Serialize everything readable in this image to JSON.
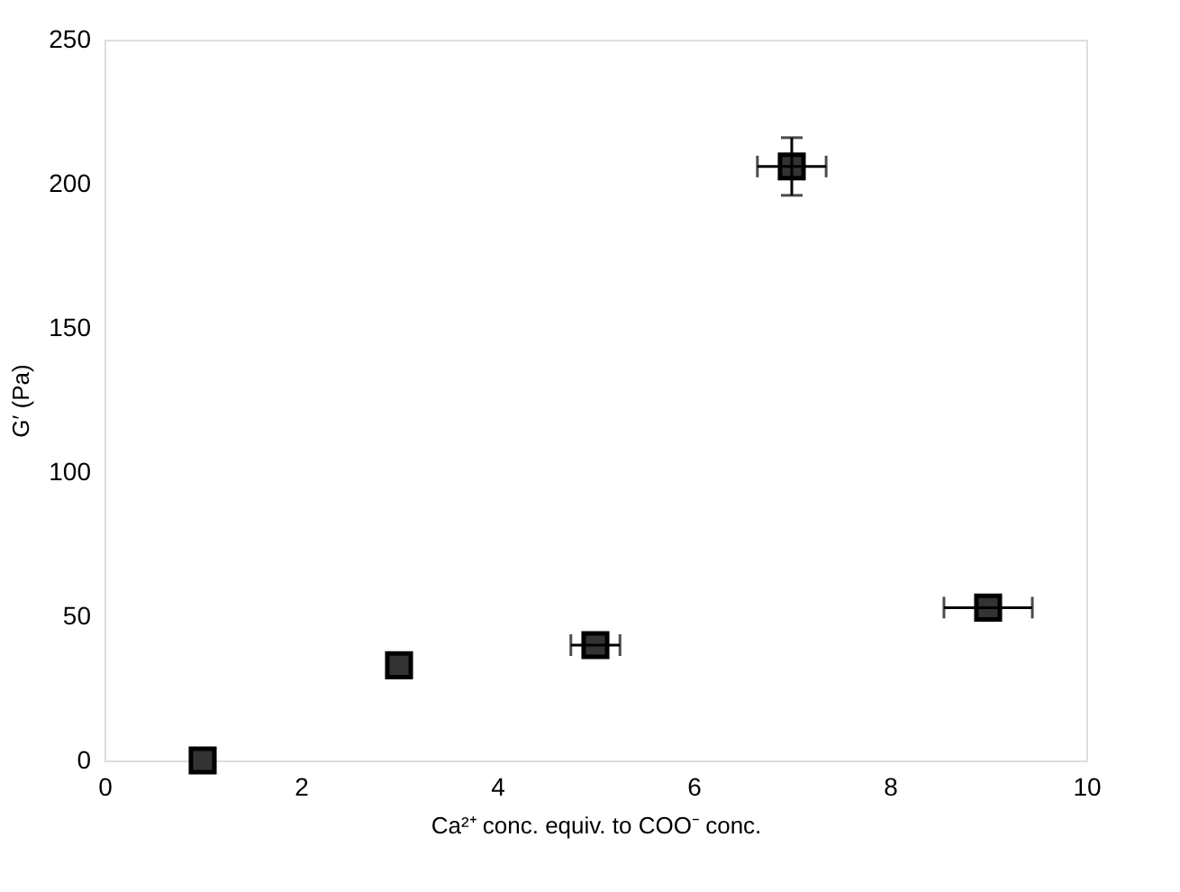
{
  "chart_data": {
    "type": "scatter",
    "xlabel": "Ca²⁺ conc. equiv. to COO⁻ conc.",
    "ylabel": "G′ (Pa)",
    "x": [
      1,
      3,
      5,
      7,
      9
    ],
    "series": [
      {
        "color": "#333333",
        "values": [
          0,
          33,
          40,
          206,
          53
        ],
        "errors": [
          null,
          null,
          null,
          10,
          null
        ],
        "xerrors": [
          null,
          null,
          0.25,
          0.35,
          0.45
        ]
      }
    ],
    "xlim": [
      0,
      10
    ],
    "xticks": [
      0,
      2,
      4,
      6,
      8,
      10
    ],
    "ylim": [
      0,
      250
    ],
    "yticks": [
      0,
      50,
      100,
      150,
      200,
      250
    ],
    "marker": "square",
    "grid": false,
    "legend": false
  }
}
